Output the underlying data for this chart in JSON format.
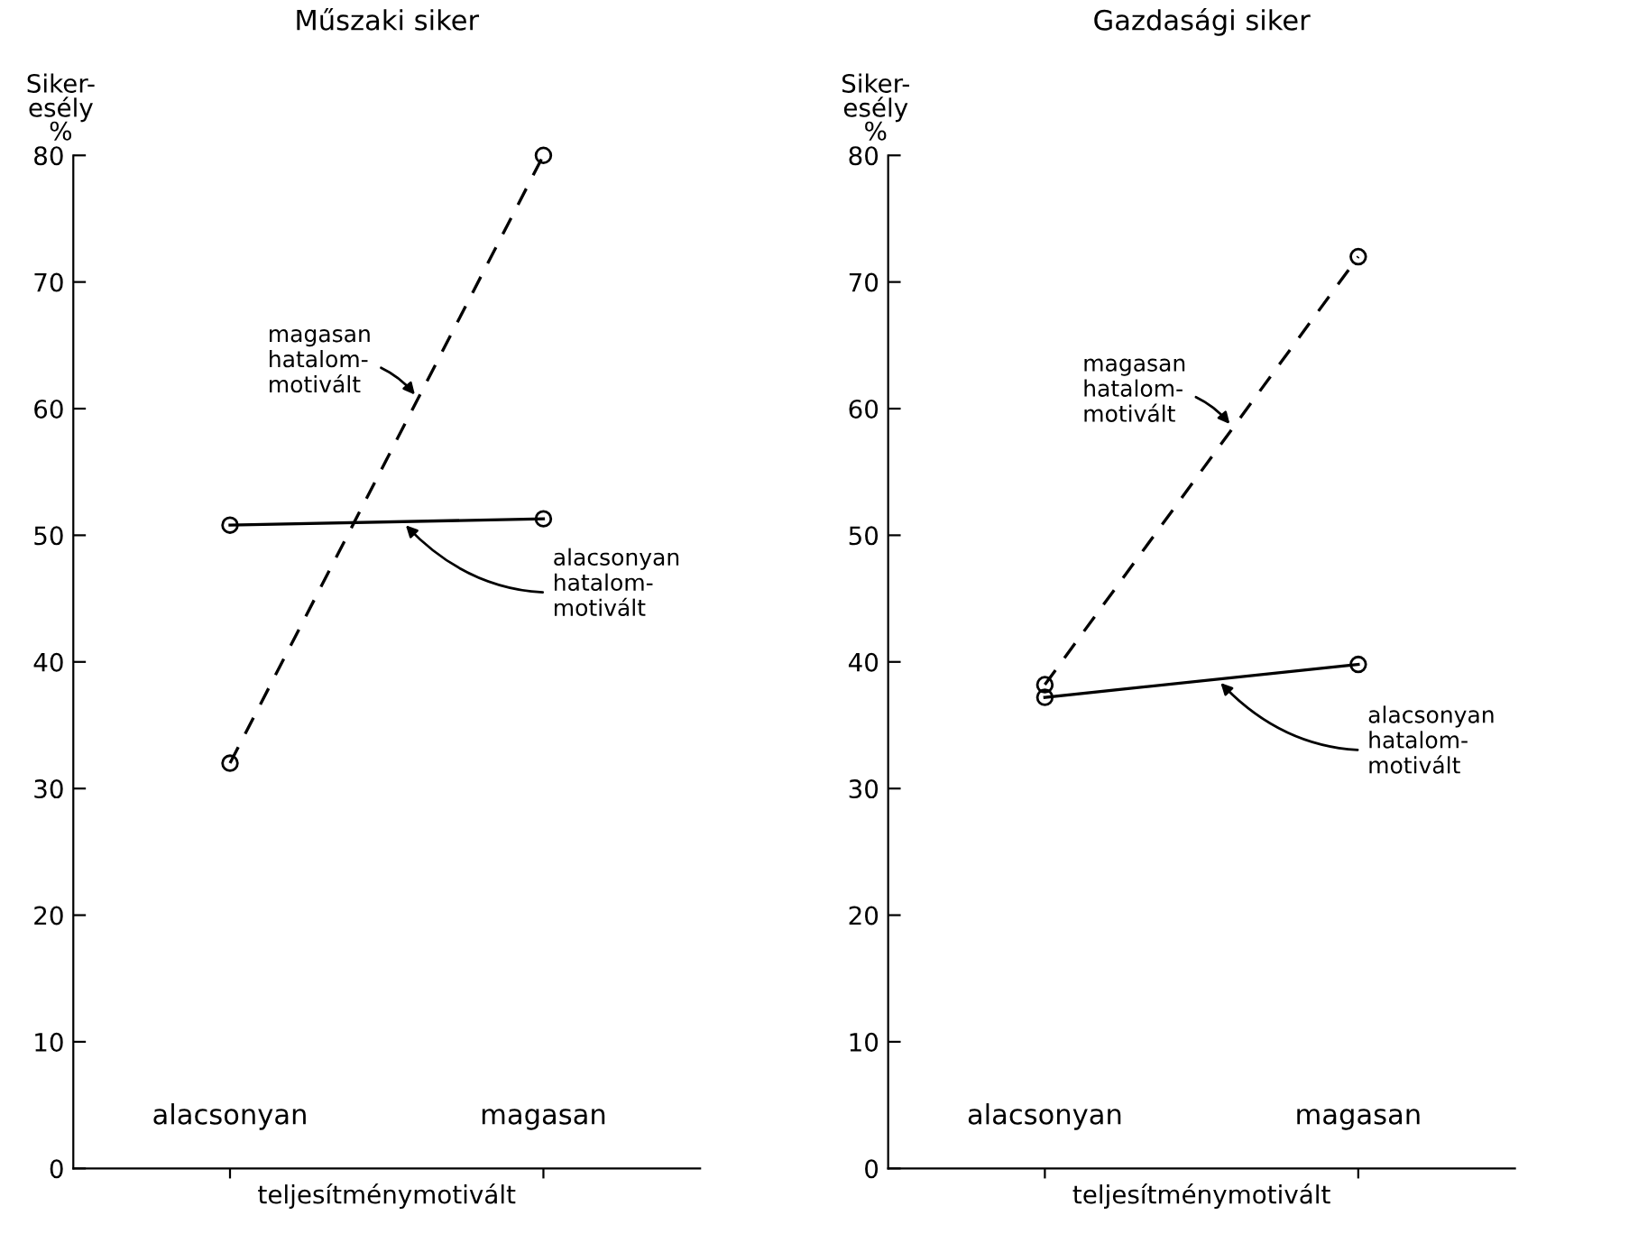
{
  "chart_data": [
    {
      "type": "line",
      "title": "Műszaki siker",
      "xlabel": "teljesítménymotivált",
      "ylabel": "Siker-\nesély\n%",
      "categories": [
        "alacsonyan",
        "magasan"
      ],
      "ylim": [
        0,
        80
      ],
      "yticks": [
        0,
        10,
        20,
        30,
        40,
        50,
        60,
        70,
        80
      ],
      "grid": false,
      "legend": false,
      "marker": "circle",
      "series": [
        {
          "name": "magasan\nhatalom-\nmotivált",
          "color": "#000000",
          "line_style": "dashed",
          "values": [
            32,
            80
          ]
        },
        {
          "name": "alacsonyan\nhatalom-\nmotivált",
          "color": "#000000",
          "line_style": "solid",
          "values": [
            50.8,
            51.3
          ]
        }
      ]
    },
    {
      "type": "line",
      "title": "Gazdasági siker",
      "xlabel": "teljesítménymotivált",
      "ylabel": "Siker-\nesély\n%",
      "categories": [
        "alacsonyan",
        "magasan"
      ],
      "ylim": [
        0,
        80
      ],
      "yticks": [
        0,
        10,
        20,
        30,
        40,
        50,
        60,
        70,
        80
      ],
      "grid": false,
      "legend": false,
      "marker": "circle",
      "series": [
        {
          "name": "magasan\nhatalom-\nmotivált",
          "color": "#000000",
          "line_style": "dashed",
          "values": [
            38.2,
            72
          ]
        },
        {
          "name": "alacsonyan\nhatalom-\nmotivált",
          "color": "#000000",
          "line_style": "solid",
          "values": [
            37.2,
            39.8
          ]
        }
      ]
    }
  ]
}
